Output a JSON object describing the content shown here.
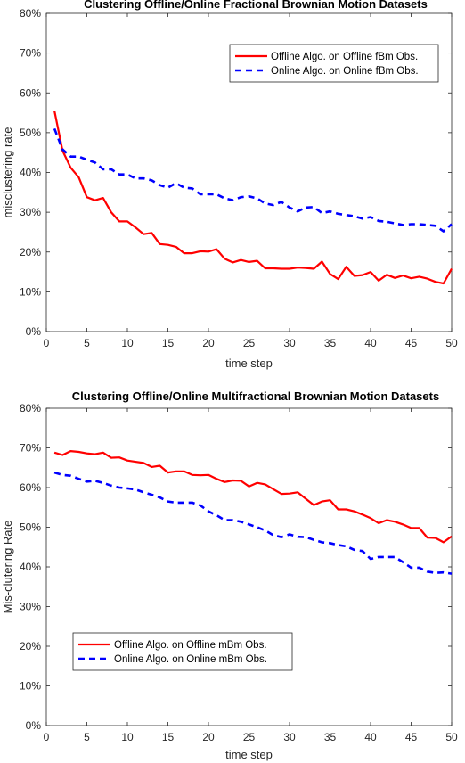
{
  "chart_data": [
    {
      "type": "line",
      "title": "Clustering Offline/Online Fractional Brownian Motion Datasets",
      "xlabel": "time step",
      "ylabel": "misclustering rate",
      "xlim": [
        0,
        50
      ],
      "ylim": [
        0,
        0.8
      ],
      "xticks": [
        "0",
        "5",
        "10",
        "15",
        "20",
        "25",
        "30",
        "35",
        "40",
        "45",
        "50"
      ],
      "yticks": [
        "0%",
        "10%",
        "20%",
        "30%",
        "40%",
        "50%",
        "60%",
        "70%",
        "80%"
      ],
      "grid": false,
      "legend_position": "top-right",
      "x": [
        1,
        2,
        3,
        4,
        5,
        6,
        7,
        8,
        9,
        10,
        11,
        12,
        13,
        14,
        15,
        16,
        17,
        18,
        19,
        20,
        21,
        22,
        23,
        24,
        25,
        26,
        27,
        28,
        29,
        30,
        31,
        32,
        33,
        34,
        35,
        36,
        37,
        38,
        39,
        40,
        41,
        42,
        43,
        44,
        45,
        46,
        47,
        48,
        49,
        50
      ],
      "series": [
        {
          "name": "Offline Algo. on Offline fBm Obs.",
          "color": "#ff0000",
          "style": "solid",
          "values": [
            0.555,
            0.455,
            0.412,
            0.388,
            0.338,
            0.33,
            0.336,
            0.3,
            0.277,
            0.277,
            0.262,
            0.245,
            0.248,
            0.22,
            0.218,
            0.213,
            0.197,
            0.197,
            0.202,
            0.201,
            0.207,
            0.183,
            0.174,
            0.18,
            0.175,
            0.178,
            0.159,
            0.159,
            0.158,
            0.158,
            0.161,
            0.16,
            0.158,
            0.176,
            0.145,
            0.132,
            0.163,
            0.14,
            0.142,
            0.15,
            0.128,
            0.143,
            0.135,
            0.141,
            0.134,
            0.138,
            0.133,
            0.125,
            0.121,
            0.158
          ]
        },
        {
          "name": "Online Algo. on Online fBm Obs.",
          "color": "#0000ff",
          "style": "dashed",
          "values": [
            0.51,
            0.458,
            0.44,
            0.44,
            0.432,
            0.425,
            0.408,
            0.408,
            0.395,
            0.395,
            0.385,
            0.385,
            0.38,
            0.368,
            0.362,
            0.373,
            0.362,
            0.36,
            0.345,
            0.345,
            0.345,
            0.335,
            0.33,
            0.338,
            0.34,
            0.335,
            0.322,
            0.318,
            0.326,
            0.312,
            0.302,
            0.312,
            0.313,
            0.298,
            0.302,
            0.296,
            0.293,
            0.29,
            0.284,
            0.288,
            0.278,
            0.276,
            0.272,
            0.268,
            0.27,
            0.27,
            0.268,
            0.266,
            0.252,
            0.27
          ]
        }
      ]
    },
    {
      "type": "line",
      "title": "Clustering Offline/Online Multifractional Brownian Motion Datasets",
      "xlabel": "time step",
      "ylabel": "Mis-clutering Rate",
      "xlim": [
        0,
        50
      ],
      "ylim": [
        0,
        0.8
      ],
      "xticks": [
        "0",
        "5",
        "10",
        "15",
        "20",
        "25",
        "30",
        "35",
        "40",
        "45",
        "50"
      ],
      "yticks": [
        "0%",
        "10%",
        "20%",
        "30%",
        "40%",
        "50%",
        "60%",
        "70%",
        "80%"
      ],
      "grid": false,
      "legend_position": "bottom-left",
      "x": [
        1,
        2,
        3,
        4,
        5,
        6,
        7,
        8,
        9,
        10,
        11,
        12,
        13,
        14,
        15,
        16,
        17,
        18,
        19,
        20,
        21,
        22,
        23,
        24,
        25,
        26,
        27,
        28,
        29,
        30,
        31,
        32,
        33,
        34,
        35,
        36,
        37,
        38,
        39,
        40,
        41,
        42,
        43,
        44,
        45,
        46,
        47,
        48,
        49,
        50
      ],
      "series": [
        {
          "name": "Offline Algo. on Offline mBm Obs.",
          "color": "#ff0000",
          "style": "solid",
          "values": [
            0.688,
            0.682,
            0.692,
            0.69,
            0.686,
            0.684,
            0.688,
            0.675,
            0.676,
            0.668,
            0.665,
            0.662,
            0.652,
            0.655,
            0.638,
            0.641,
            0.641,
            0.632,
            0.631,
            0.632,
            0.622,
            0.614,
            0.618,
            0.617,
            0.603,
            0.612,
            0.608,
            0.596,
            0.584,
            0.585,
            0.588,
            0.572,
            0.556,
            0.565,
            0.568,
            0.545,
            0.545,
            0.54,
            0.532,
            0.523,
            0.51,
            0.518,
            0.514,
            0.507,
            0.498,
            0.498,
            0.474,
            0.473,
            0.462,
            0.477
          ]
        },
        {
          "name": "Online Algo. on Online mBm Obs.",
          "color": "#0000ff",
          "style": "dashed",
          "values": [
            0.638,
            0.632,
            0.63,
            0.622,
            0.615,
            0.617,
            0.612,
            0.605,
            0.6,
            0.598,
            0.595,
            0.588,
            0.582,
            0.575,
            0.565,
            0.562,
            0.562,
            0.562,
            0.555,
            0.54,
            0.53,
            0.518,
            0.518,
            0.514,
            0.507,
            0.5,
            0.492,
            0.48,
            0.475,
            0.482,
            0.476,
            0.475,
            0.468,
            0.462,
            0.46,
            0.455,
            0.452,
            0.443,
            0.44,
            0.42,
            0.425,
            0.425,
            0.425,
            0.412,
            0.398,
            0.398,
            0.388,
            0.385,
            0.386,
            0.383
          ]
        }
      ]
    }
  ]
}
